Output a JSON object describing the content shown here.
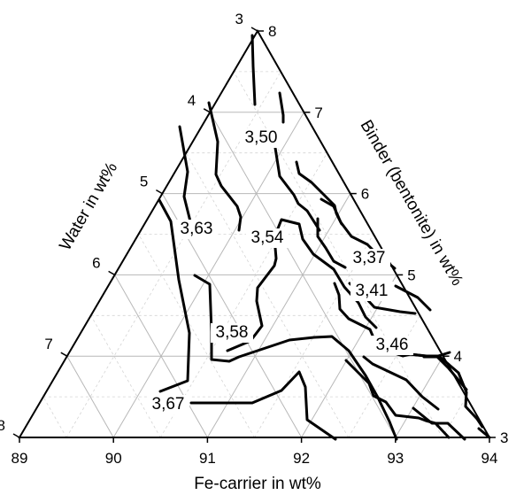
{
  "chart_data": {
    "type": "ternary-contour",
    "axes": {
      "bottom": {
        "title": "Fe-carrier in wt%",
        "ticks": [
          "89",
          "90",
          "91",
          "92",
          "93",
          "94"
        ]
      },
      "left": {
        "title": "Water in wt%",
        "ticks": [
          "3",
          "4",
          "5",
          "6",
          "7",
          "8"
        ]
      },
      "right": {
        "title": "Binder (bentonite) in wt%",
        "ticks": [
          "3",
          "4",
          "5",
          "6",
          "7",
          "8"
        ]
      }
    },
    "grid": true,
    "contour_labels": [
      "3,67",
      "3,63",
      "3,58",
      "3,54",
      "3,50",
      "3,46",
      "3,41",
      "3,37"
    ]
  }
}
